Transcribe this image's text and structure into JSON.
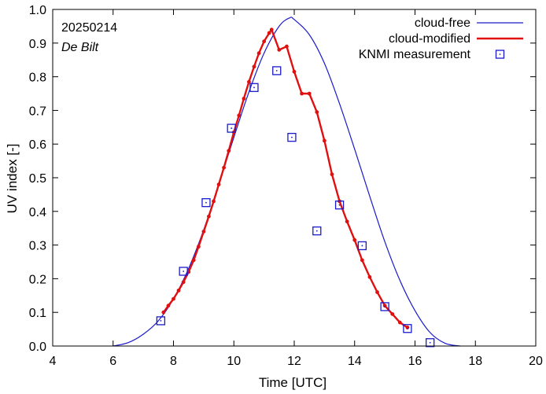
{
  "chart_data": {
    "type": "line",
    "title": "",
    "xlabel": "Time  [UTC]",
    "ylabel": "UV index  [-]",
    "xlim": [
      4,
      20
    ],
    "ylim": [
      0,
      1.0
    ],
    "xticks": [
      4,
      6,
      8,
      10,
      12,
      14,
      16,
      18,
      20
    ],
    "yticks": [
      0.0,
      0.1,
      0.2,
      0.3,
      0.4,
      0.5,
      0.6,
      0.7,
      0.8,
      0.9,
      1.0
    ],
    "ytick_labels": [
      "0.0",
      "0.1",
      "0.2",
      "0.3",
      "0.4",
      "0.5",
      "0.6",
      "0.7",
      "0.8",
      "0.9",
      "1.0"
    ],
    "grid": false,
    "legend_position": "top-right",
    "annotations": {
      "date": "20250214",
      "location": "De Bilt"
    },
    "colors": {
      "cloud_free": "#1a1acc",
      "cloud_modified": "#e01010",
      "measurement": "#1a1acc"
    },
    "series": [
      {
        "name": "cloud-free",
        "style": "line",
        "x": [
          6.0,
          6.5,
          7.0,
          7.5,
          8.0,
          8.5,
          9.0,
          9.5,
          10.0,
          10.5,
          11.0,
          11.5,
          11.85,
          12.0,
          12.5,
          13.0,
          13.5,
          14.0,
          14.5,
          15.0,
          15.5,
          16.0,
          16.5,
          17.0,
          17.5
        ],
        "y": [
          0.0,
          0.01,
          0.035,
          0.075,
          0.14,
          0.23,
          0.345,
          0.48,
          0.62,
          0.755,
          0.87,
          0.95,
          0.975,
          0.97,
          0.925,
          0.84,
          0.72,
          0.585,
          0.445,
          0.31,
          0.195,
          0.105,
          0.04,
          0.008,
          0.0
        ]
      },
      {
        "name": "cloud-modified",
        "style": "line+points",
        "x": [
          7.67,
          7.83,
          8.0,
          8.17,
          8.33,
          8.5,
          8.67,
          8.83,
          9.0,
          9.17,
          9.33,
          9.5,
          9.67,
          9.83,
          10.0,
          10.17,
          10.33,
          10.5,
          10.67,
          10.83,
          11.0,
          11.17,
          11.25,
          11.5,
          11.75,
          12.0,
          12.25,
          12.5,
          12.75,
          13.0,
          13.25,
          13.5,
          13.75,
          14.0,
          14.25,
          14.5,
          14.75,
          15.0,
          15.25,
          15.5,
          15.75
        ],
        "y": [
          0.1,
          0.12,
          0.14,
          0.165,
          0.19,
          0.22,
          0.255,
          0.295,
          0.34,
          0.385,
          0.43,
          0.48,
          0.53,
          0.58,
          0.635,
          0.685,
          0.735,
          0.785,
          0.83,
          0.87,
          0.905,
          0.93,
          0.94,
          0.88,
          0.89,
          0.815,
          0.75,
          0.75,
          0.695,
          0.61,
          0.51,
          0.43,
          0.37,
          0.315,
          0.255,
          0.205,
          0.16,
          0.12,
          0.095,
          0.07,
          0.055
        ]
      },
      {
        "name": "KNMI measurement",
        "style": "points",
        "x": [
          7.58,
          8.33,
          9.08,
          9.92,
          10.67,
          11.42,
          11.92,
          12.75,
          13.5,
          14.25,
          15.0,
          15.75,
          16.5
        ],
        "y": [
          0.075,
          0.222,
          0.426,
          0.647,
          0.768,
          0.818,
          0.62,
          0.342,
          0.419,
          0.298,
          0.117,
          0.052,
          0.01
        ]
      }
    ]
  }
}
